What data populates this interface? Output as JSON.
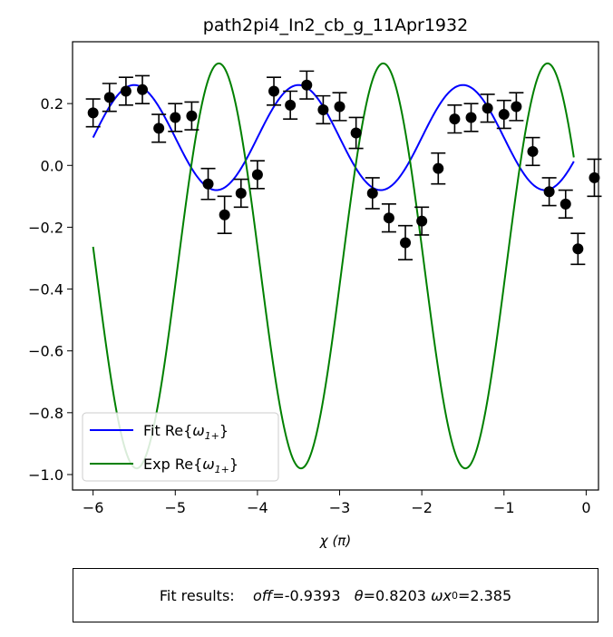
{
  "chart_data": {
    "type": "scatter",
    "title": "path2pi4_In2_cb_g_11Apr1932",
    "xlabel": "χ (π)",
    "xlim": [
      -6.25,
      0.15
    ],
    "ylim": [
      -1.05,
      0.4
    ],
    "xticks": [
      -6,
      -5,
      -4,
      -3,
      -2,
      -1,
      0
    ],
    "yticks": [
      -1.0,
      -0.8,
      -0.6,
      -0.4,
      -0.2,
      0.0,
      0.2
    ],
    "xtick_labels": [
      "−6",
      "−5",
      "−4",
      "−3",
      "−2",
      "−1",
      "0"
    ],
    "ytick_labels": [
      "−1.0",
      "−0.8",
      "−0.6",
      "−0.4",
      "−0.2",
      "0.0",
      "0.2"
    ],
    "legend_position": "lower-left",
    "series": [
      {
        "name": "Fit Re{ω1+}",
        "kind": "line",
        "color": "#0000ff",
        "model": {
          "offset": 0.09,
          "amplitude": 0.17,
          "period": 2.0,
          "peak_x": -5.5,
          "x_start": -6.0,
          "x_end": -0.15
        }
      },
      {
        "name": "Exp Re{ω1+}",
        "kind": "line",
        "color": "#008000",
        "model": {
          "min": -0.98,
          "max": 0.33,
          "period": 2.0,
          "trough_x": -5.47,
          "x_start": -6.0,
          "x_end": -0.15
        }
      },
      {
        "name": "data",
        "kind": "errorbar",
        "color": "#000000",
        "points": [
          {
            "x": -6.0,
            "y": 0.17,
            "err": 0.045
          },
          {
            "x": -5.8,
            "y": 0.22,
            "err": 0.045
          },
          {
            "x": -5.6,
            "y": 0.24,
            "err": 0.045
          },
          {
            "x": -5.4,
            "y": 0.245,
            "err": 0.045
          },
          {
            "x": -5.2,
            "y": 0.12,
            "err": 0.045
          },
          {
            "x": -5.0,
            "y": 0.155,
            "err": 0.045
          },
          {
            "x": -4.8,
            "y": 0.16,
            "err": 0.045
          },
          {
            "x": -4.6,
            "y": -0.06,
            "err": 0.05
          },
          {
            "x": -4.4,
            "y": -0.16,
            "err": 0.06
          },
          {
            "x": -4.2,
            "y": -0.09,
            "err": 0.045
          },
          {
            "x": -4.0,
            "y": -0.03,
            "err": 0.045
          },
          {
            "x": -3.8,
            "y": 0.24,
            "err": 0.045
          },
          {
            "x": -3.6,
            "y": 0.195,
            "err": 0.045
          },
          {
            "x": -3.4,
            "y": 0.26,
            "err": 0.045
          },
          {
            "x": -3.2,
            "y": 0.18,
            "err": 0.045
          },
          {
            "x": -3.0,
            "y": 0.19,
            "err": 0.045
          },
          {
            "x": -2.8,
            "y": 0.105,
            "err": 0.05
          },
          {
            "x": -2.6,
            "y": -0.09,
            "err": 0.05
          },
          {
            "x": -2.4,
            "y": -0.17,
            "err": 0.045
          },
          {
            "x": -2.2,
            "y": -0.25,
            "err": 0.055
          },
          {
            "x": -2.0,
            "y": -0.18,
            "err": 0.045
          },
          {
            "x": -1.8,
            "y": -0.01,
            "err": 0.05
          },
          {
            "x": -1.6,
            "y": 0.15,
            "err": 0.045
          },
          {
            "x": -1.4,
            "y": 0.155,
            "err": 0.045
          },
          {
            "x": -1.2,
            "y": 0.185,
            "err": 0.045
          },
          {
            "x": -1.0,
            "y": 0.165,
            "err": 0.045
          },
          {
            "x": -0.85,
            "y": 0.19,
            "err": 0.045
          },
          {
            "x": -0.65,
            "y": 0.045,
            "err": 0.045
          },
          {
            "x": -0.45,
            "y": -0.085,
            "err": 0.045
          },
          {
            "x": -0.25,
            "y": -0.125,
            "err": 0.045
          },
          {
            "x": -0.1,
            "y": -0.27,
            "err": 0.05
          },
          {
            "x": 0.1,
            "y": -0.04,
            "err": 0.06
          }
        ]
      }
    ]
  },
  "legend": {
    "fit_label_prefix": "Fit Re{",
    "fit_label_symbol": "ω",
    "fit_label_sub": "1+",
    "fit_label_suffix": "}",
    "exp_label_prefix": "Exp Re{",
    "exp_label_symbol": "ω",
    "exp_label_sub": "1+",
    "exp_label_suffix": "}"
  },
  "results": {
    "label": "Fit results:",
    "off_name": "off",
    "off_value": "=-0.9393",
    "theta_name": "θ",
    "theta_value": "=0.8203",
    "omega_name": "ωx",
    "omega_sub": "0",
    "omega_value": "=2.385"
  }
}
